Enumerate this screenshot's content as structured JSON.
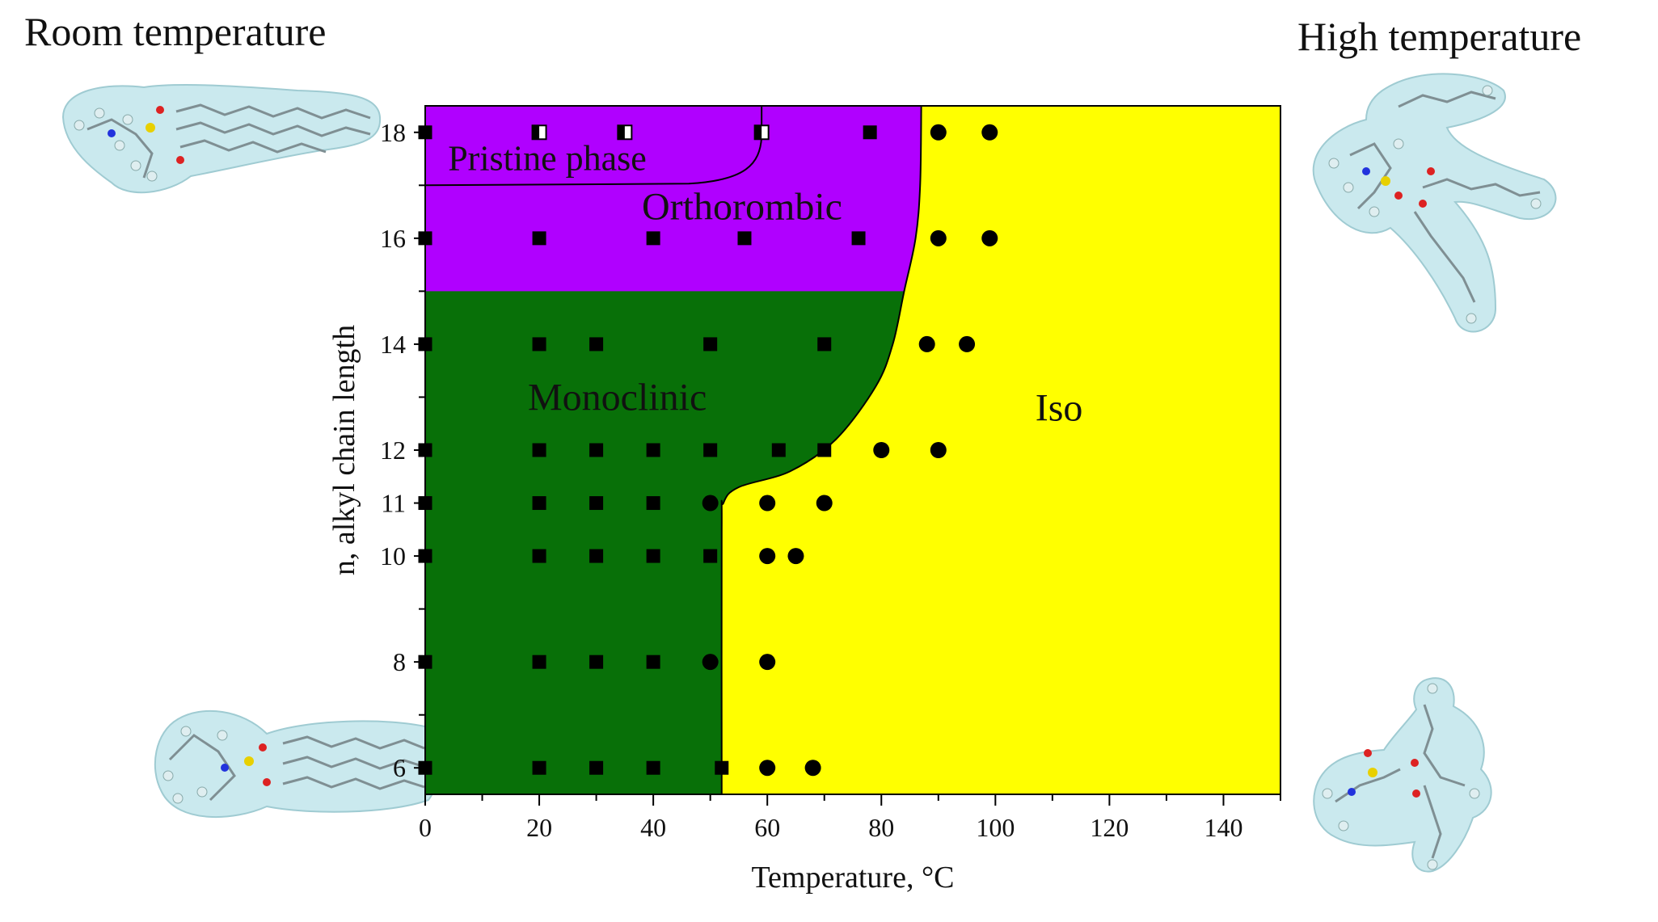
{
  "labels": {
    "room_temperature": "Room temperature",
    "high_temperature": "High temperature"
  },
  "molecule_icons": {
    "room_top": "molecule-model-icon",
    "room_bottom": "molecule-model-icon",
    "high_top": "molecule-model-icon",
    "high_bottom": "molecule-model-icon"
  },
  "colors": {
    "pristine_ortho": "#B000FF",
    "monoclinic": "#087008",
    "iso": "#FFFF00",
    "markers": "#000000"
  },
  "chart_data": {
    "type": "scatter",
    "title": "",
    "xlabel": "Temperature, °C",
    "ylabel": "n, alkyl chain length",
    "xlim": [
      0,
      150
    ],
    "ylim": [
      5.5,
      18.5
    ],
    "xticks": [
      0,
      20,
      40,
      60,
      80,
      100,
      120,
      140
    ],
    "yticks": [
      6,
      8,
      10,
      11,
      12,
      14,
      16,
      18
    ],
    "grid": false,
    "region_labels": {
      "pristine": "Pristine phase",
      "orthorhombic": "Orthorombic",
      "monoclinic": "Monoclinic",
      "iso": "Iso"
    },
    "boundaries": {
      "ortho_monoclinic_n": 15,
      "pristine_lower_n": 17,
      "pristine_edge_x": 59,
      "ordered_iso": [
        [
          52,
          5.5
        ],
        [
          52,
          10.5
        ],
        [
          52.3,
          11.0
        ],
        [
          55,
          11.3
        ],
        [
          64,
          11.6
        ],
        [
          72,
          12.2
        ],
        [
          79,
          13.2
        ],
        [
          82,
          14.0
        ],
        [
          84,
          15.0
        ],
        [
          86,
          16.0
        ],
        [
          86.8,
          17.0
        ],
        [
          87,
          18.5
        ]
      ]
    },
    "series": [
      {
        "marker": "square",
        "points": [
          [
            0,
            18
          ],
          [
            78,
            18
          ],
          [
            0,
            16
          ],
          [
            20,
            16
          ],
          [
            40,
            16
          ],
          [
            56,
            16
          ],
          [
            76,
            16
          ],
          [
            0,
            14
          ],
          [
            20,
            14
          ],
          [
            30,
            14
          ],
          [
            50,
            14
          ],
          [
            70,
            14
          ],
          [
            0,
            12
          ],
          [
            20,
            12
          ],
          [
            30,
            12
          ],
          [
            40,
            12
          ],
          [
            50,
            12
          ],
          [
            62,
            12
          ],
          [
            70,
            12
          ],
          [
            0,
            11
          ],
          [
            20,
            11
          ],
          [
            30,
            11
          ],
          [
            40,
            11
          ],
          [
            0,
            10
          ],
          [
            20,
            10
          ],
          [
            30,
            10
          ],
          [
            40,
            10
          ],
          [
            50,
            10
          ],
          [
            0,
            8
          ],
          [
            20,
            8
          ],
          [
            30,
            8
          ],
          [
            40,
            8
          ],
          [
            0,
            6
          ],
          [
            20,
            6
          ],
          [
            30,
            6
          ],
          [
            40,
            6
          ],
          [
            52,
            6
          ]
        ]
      },
      {
        "marker": "half-square",
        "points": [
          [
            20,
            18
          ],
          [
            35,
            18
          ],
          [
            59,
            18
          ]
        ]
      },
      {
        "marker": "circle",
        "points": [
          [
            90,
            18
          ],
          [
            99,
            18
          ],
          [
            90,
            16
          ],
          [
            99,
            16
          ],
          [
            88,
            14
          ],
          [
            95,
            14
          ],
          [
            80,
            12
          ],
          [
            90,
            12
          ],
          [
            50,
            11
          ],
          [
            60,
            11
          ],
          [
            70,
            11
          ],
          [
            60,
            10
          ],
          [
            65,
            10
          ],
          [
            50,
            8
          ],
          [
            60,
            8
          ],
          [
            60,
            6
          ],
          [
            68,
            6
          ]
        ]
      }
    ]
  }
}
